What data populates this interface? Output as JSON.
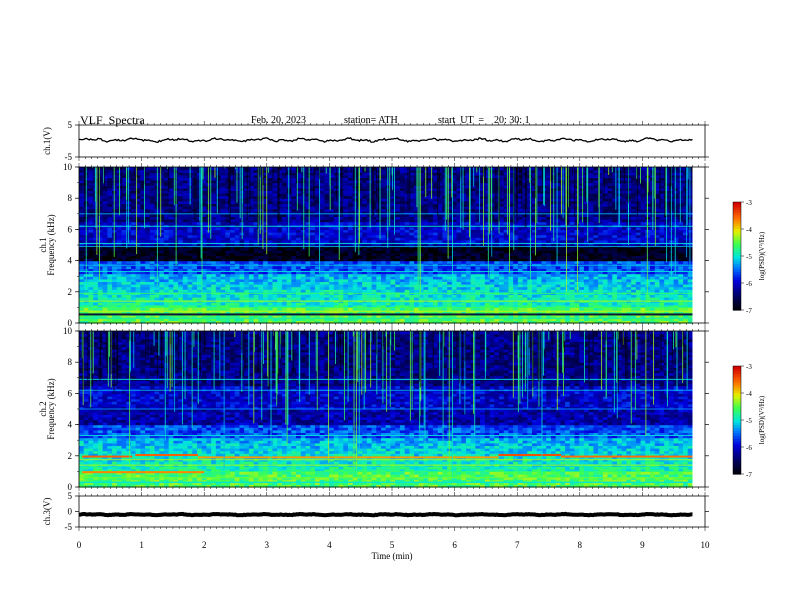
{
  "header": {
    "title": "VLF  Spectra",
    "date": "Feb. 20, 2023",
    "station": "station= ATH",
    "start": "start  UT  =    20: 30: 1"
  },
  "chart_data": {
    "type": "heatmap",
    "panels": [
      {
        "id": "ch1_waveform",
        "type": "line",
        "ylabel": "ch.1(V)",
        "ylim": [
          -5,
          5
        ],
        "yticks": [
          5,
          -5
        ],
        "description_values": {
          "mean": 0.3,
          "amplitude": 0.6
        }
      },
      {
        "id": "ch1_spectrogram",
        "type": "heatmap",
        "ylabel": "ch.1\nFrequency  (kHz)",
        "ylim": [
          0,
          10
        ],
        "yticks": [
          0,
          2,
          4,
          6,
          8,
          10
        ],
        "colorbar": {
          "label": "log(PSD)(V²/Hz)",
          "range": [
            -7,
            -3
          ],
          "ticks": [
            -3,
            -4,
            -5,
            -6,
            -7
          ]
        }
      },
      {
        "id": "ch2_spectrogram",
        "type": "heatmap",
        "ylabel": "ch.2\nFrequency  (kHz)",
        "ylim": [
          0,
          10
        ],
        "yticks": [
          0,
          2,
          4,
          6,
          8,
          10
        ],
        "colorbar": {
          "label": "log(PSD)(V²/Hz)",
          "range": [
            -7,
            -3
          ],
          "ticks": [
            -3,
            -4,
            -5,
            -6,
            -7
          ]
        }
      },
      {
        "id": "ch3_waveform",
        "type": "line",
        "ylabel": "ch.3(V)",
        "ylim": [
          -5,
          5
        ],
        "yticks": [
          5,
          0,
          -5
        ],
        "description_values": {
          "mean": -1.0,
          "amplitude": 0.2
        }
      }
    ],
    "x": {
      "label": "Time  (min)",
      "range": [
        0,
        10
      ],
      "ticks": [
        0,
        1,
        2,
        3,
        4,
        5,
        6,
        7,
        8,
        9,
        10
      ],
      "data_end": 9.8
    }
  }
}
